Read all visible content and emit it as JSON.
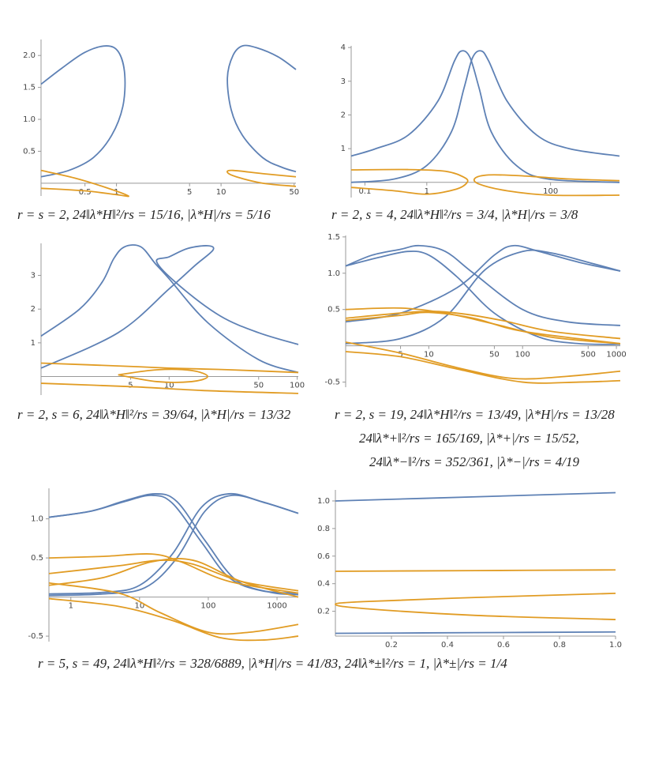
{
  "chart_data": [
    {
      "type": "line",
      "xlog": true,
      "xlim": [
        0.19,
        52
      ],
      "ylim": [
        -0.2,
        2.25
      ],
      "xticks": [
        0.5,
        1,
        5,
        10,
        50
      ],
      "yticks": [
        0.5,
        {
          "value": 1,
          "label": "1.0"
        },
        1.5,
        {
          "value": 2,
          "label": "2.0"
        }
      ],
      "caption": "r = s = 2, 24‖λ*H‖²/rs = 15/16, |λ*H|/rs = 5/16",
      "series": [
        {
          "color": "#5e81b5",
          "x": [
            0.19,
            0.3,
            0.5,
            0.8,
            1.05,
            1.2,
            1.15,
            0.9,
            0.6,
            0.35,
            0.19
          ],
          "values": [
            1.55,
            1.8,
            2.05,
            2.15,
            2.05,
            1.7,
            1.2,
            0.75,
            0.4,
            0.2,
            0.1
          ]
        },
        {
          "color": "#5e81b5",
          "x": [
            52,
            35,
            22,
            16,
            13,
            11.5,
            12.5,
            16,
            25,
            38,
            52
          ],
          "values": [
            1.78,
            1.98,
            2.12,
            2.15,
            2.0,
            1.65,
            1.15,
            0.75,
            0.4,
            0.25,
            0.18
          ]
        },
        {
          "color": "#e19c24",
          "x": [
            0.19,
            0.4,
            0.8,
            1.3,
            1.0,
            0.5,
            0.19
          ],
          "values": [
            0.2,
            0.08,
            -0.07,
            -0.2,
            -0.18,
            -0.12,
            -0.08
          ]
        },
        {
          "color": "#e19c24",
          "x": [
            52,
            25,
            13,
            11.5,
            14,
            25,
            52
          ],
          "values": [
            0.1,
            0.15,
            0.2,
            0.17,
            0.1,
            0.0,
            -0.05
          ]
        }
      ]
    },
    {
      "type": "line",
      "xlog": true,
      "xlim": [
        0.06,
        1300
      ],
      "ylim": [
        -0.45,
        4.05
      ],
      "xticks": [
        0.1,
        1,
        100
      ],
      "yticks": [
        1,
        2,
        3,
        4
      ],
      "caption": "r = 2, s = 4, 24‖λ*H‖²/rs = 3/4, |λ*H|/rs = 3/8",
      "series": [
        {
          "color": "#5e81b5",
          "x": [
            0.06,
            0.15,
            0.5,
            1.5,
            2.8,
            3.7,
            5,
            7,
            11,
            28,
            90,
            1300
          ],
          "values": [
            0.78,
            1.0,
            1.4,
            2.4,
            3.6,
            3.9,
            3.7,
            2.8,
            1.5,
            0.5,
            0.1,
            0.0
          ]
        },
        {
          "color": "#5e81b5",
          "x": [
            0.06,
            0.3,
            1,
            2.5,
            4,
            5.5,
            7.5,
            10,
            20,
            60,
            200,
            1300
          ],
          "values": [
            0.0,
            0.1,
            0.5,
            1.5,
            2.8,
            3.7,
            3.9,
            3.6,
            2.4,
            1.4,
            1.0,
            0.78
          ]
        },
        {
          "color": "#e19c24",
          "x": [
            0.06,
            0.5,
            2,
            4,
            4.5,
            3,
            1,
            0.3,
            0.06
          ],
          "values": [
            0.37,
            0.38,
            0.33,
            0.15,
            0.0,
            -0.2,
            -0.35,
            -0.25,
            -0.15
          ]
        },
        {
          "color": "#e19c24",
          "x": [
            1300,
            200,
            30,
            10,
            6,
            7,
            20,
            100,
            1300
          ],
          "values": [
            0.05,
            0.1,
            0.2,
            0.22,
            0.12,
            -0.05,
            -0.25,
            -0.38,
            -0.38
          ]
        }
      ]
    },
    {
      "type": "line",
      "xlog": true,
      "xlim": [
        1,
        102
      ],
      "ylim": [
        -0.55,
        3.95
      ],
      "xticks": [
        5,
        10,
        50,
        100
      ],
      "yticks": [
        1,
        2,
        3
      ],
      "caption": "r = 2, s = 6, 24‖λ*H‖²/rs = 39/64, |λ*H|/rs = 13/32",
      "series": [
        {
          "color": "#5e81b5",
          "x": [
            1,
            4,
            10,
            16,
            22,
            20,
            14,
            10,
            8,
            12,
            25,
            50,
            102
          ],
          "values": [
            0.25,
            1.3,
            2.6,
            3.3,
            3.75,
            3.88,
            3.8,
            3.55,
            3.4,
            2.7,
            1.8,
            1.3,
            0.95
          ]
        },
        {
          "color": "#5e81b5",
          "x": [
            1,
            2,
            3,
            3.7,
            4.5,
            6,
            7.8,
            10,
            20,
            50,
            102
          ],
          "values": [
            1.2,
            2.0,
            2.8,
            3.5,
            3.85,
            3.85,
            3.35,
            2.9,
            1.6,
            0.5,
            0.12
          ]
        },
        {
          "color": "#e19c24",
          "x": [
            1,
            5,
            10,
            30,
            102
          ],
          "values": [
            0.4,
            0.3,
            0.25,
            0.2,
            0.12
          ]
        },
        {
          "color": "#e19c24",
          "x": [
            4,
            8,
            15,
            20,
            15,
            8,
            4
          ],
          "values": [
            0.05,
            0.2,
            0.18,
            0.0,
            -0.15,
            -0.15,
            0.05
          ]
        },
        {
          "color": "#e19c24",
          "x": [
            1,
            5,
            20,
            102
          ],
          "values": [
            -0.2,
            -0.3,
            -0.42,
            -0.5
          ]
        }
      ]
    },
    {
      "type": "line",
      "xlog": true,
      "xlim": [
        1.3,
        1100
      ],
      "ylim": [
        -0.57,
        1.52
      ],
      "xticks": [
        5,
        10,
        50,
        100,
        500,
        1000
      ],
      "yticks": [
        -0.5,
        0.5,
        {
          "value": 1,
          "label": "1.0"
        },
        1.5
      ],
      "caption": [
        "r = 2, s = 19, 24‖λ*H‖²/rs = 13/49, |λ*H|/rs = 13/28",
        "24‖λ*+‖²/rs = 165/169, |λ*+|/rs = 15/52,",
        "24‖λ*−‖²/rs = 352/361, |λ*−|/rs = 4/19"
      ],
      "series": [
        {
          "color": "#5e81b5",
          "x": [
            1.3,
            2.5,
            5,
            8,
            15,
            30,
            100,
            300,
            1100
          ],
          "values": [
            1.1,
            1.25,
            1.33,
            1.38,
            1.3,
            1.0,
            0.5,
            0.33,
            0.28
          ]
        },
        {
          "color": "#5e81b5",
          "x": [
            1.3,
            3,
            6,
            10,
            20,
            50,
            150,
            400,
            1100
          ],
          "values": [
            1.1,
            1.22,
            1.3,
            1.25,
            0.95,
            0.45,
            0.12,
            0.03,
            0.02
          ]
        },
        {
          "color": "#5e81b5",
          "x": [
            1.3,
            5,
            20,
            50,
            80,
            150,
            400,
            1100
          ],
          "values": [
            0.33,
            0.45,
            0.8,
            1.25,
            1.38,
            1.3,
            1.15,
            1.03
          ]
        },
        {
          "color": "#5e81b5",
          "x": [
            1.3,
            5,
            15,
            40,
            100,
            200,
            500,
            1100
          ],
          "values": [
            0.03,
            0.1,
            0.4,
            1.05,
            1.3,
            1.28,
            1.15,
            1.03
          ]
        },
        {
          "color": "#e19c24",
          "x": [
            1.3,
            5,
            15,
            50,
            200,
            1100
          ],
          "values": [
            0.5,
            0.52,
            0.45,
            0.3,
            0.12,
            0.03
          ]
        },
        {
          "color": "#e19c24",
          "x": [
            1.3,
            8,
            20,
            60,
            200,
            1100
          ],
          "values": [
            0.38,
            0.47,
            0.45,
            0.35,
            0.2,
            0.1
          ]
        },
        {
          "color": "#e19c24",
          "x": [
            1.3,
            5,
            10,
            30,
            100,
            1100
          ],
          "values": [
            0.35,
            0.42,
            0.46,
            0.38,
            0.2,
            0.03
          ]
        },
        {
          "color": "#e19c24",
          "x": [
            1.3,
            5,
            20,
            80,
            300,
            1100
          ],
          "values": [
            0.05,
            -0.1,
            -0.3,
            -0.45,
            -0.42,
            -0.35
          ]
        },
        {
          "color": "#e19c24",
          "x": [
            1.3,
            5,
            20,
            100,
            400,
            1100
          ],
          "values": [
            -0.08,
            -0.15,
            -0.32,
            -0.5,
            -0.5,
            -0.48
          ]
        }
      ]
    },
    {
      "type": "line",
      "xlog": true,
      "xlim": [
        0.48,
        2040
      ],
      "ylim": [
        -0.57,
        1.39
      ],
      "xticks": [
        1,
        10,
        100,
        1000
      ],
      "yticks": [
        -0.5,
        0.5,
        {
          "value": 1,
          "label": "1.0"
        }
      ],
      "caption": "r = 5, s = 49, 24‖λ*H‖²/rs = 328/6889, |λ*H|/rs = 41/83, 24‖λ*±‖²/rs = 1, |λ*±|/rs = 1/4",
      "series": [
        {
          "color": "#5e81b5",
          "x": [
            0.48,
            2,
            6,
            15,
            30,
            80,
            200,
            600,
            2040
          ],
          "values": [
            1.02,
            1.1,
            1.22,
            1.3,
            1.2,
            0.7,
            0.25,
            0.08,
            0.05
          ]
        },
        {
          "color": "#5e81b5",
          "x": [
            0.48,
            2,
            6,
            17,
            35,
            90,
            250,
            800,
            2040
          ],
          "values": [
            1.02,
            1.1,
            1.23,
            1.32,
            1.22,
            0.72,
            0.22,
            0.06,
            0.03
          ]
        },
        {
          "color": "#5e81b5",
          "x": [
            0.48,
            3,
            10,
            30,
            80,
            200,
            600,
            2040
          ],
          "values": [
            0.04,
            0.06,
            0.15,
            0.55,
            1.15,
            1.32,
            1.22,
            1.07
          ]
        },
        {
          "color": "#5e81b5",
          "x": [
            0.48,
            3,
            12,
            35,
            90,
            220,
            700,
            2040
          ],
          "values": [
            0.02,
            0.04,
            0.12,
            0.5,
            1.1,
            1.3,
            1.2,
            1.07
          ]
        },
        {
          "color": "#e19c24",
          "x": [
            0.48,
            3,
            15,
            40,
            200,
            2040
          ],
          "values": [
            0.5,
            0.52,
            0.55,
            0.45,
            0.2,
            0.05
          ]
        },
        {
          "color": "#e19c24",
          "x": [
            0.48,
            5,
            20,
            60,
            300,
            2040
          ],
          "values": [
            0.3,
            0.4,
            0.47,
            0.42,
            0.2,
            0.08
          ]
        },
        {
          "color": "#e19c24",
          "x": [
            0.48,
            3,
            15,
            60,
            300,
            2040
          ],
          "values": [
            0.15,
            0.25,
            0.45,
            0.47,
            0.2,
            0.0
          ]
        },
        {
          "color": "#e19c24",
          "x": [
            0.48,
            5,
            20,
            100,
            400,
            2040
          ],
          "values": [
            0.18,
            0.05,
            -0.2,
            -0.45,
            -0.45,
            -0.35
          ]
        },
        {
          "color": "#e19c24",
          "x": [
            0.48,
            5,
            30,
            150,
            600,
            2040
          ],
          "values": [
            -0.02,
            -0.12,
            -0.3,
            -0.52,
            -0.55,
            -0.5
          ]
        }
      ]
    },
    {
      "type": "line",
      "xlog": false,
      "xlim": [
        0,
        1
      ],
      "ylim": [
        0.02,
        1.08
      ],
      "xticks": [
        0.2,
        0.4,
        0.6,
        0.8,
        {
          "value": 1,
          "label": "1.0"
        }
      ],
      "yticks": [
        0.2,
        0.4,
        0.6,
        0.8,
        {
          "value": 1,
          "label": "1.0"
        }
      ],
      "series": [
        {
          "color": "#5e81b5",
          "x": [
            0,
            0.5,
            1
          ],
          "values": [
            1.0,
            1.03,
            1.06
          ]
        },
        {
          "color": "#e19c24",
          "x": [
            0,
            0.5,
            1
          ],
          "values": [
            0.49,
            0.495,
            0.5
          ]
        },
        {
          "color": "#e19c24",
          "x": [
            1,
            0.5,
            0.1,
            0,
            0.1,
            0.5,
            1
          ],
          "values": [
            0.33,
            0.3,
            0.27,
            0.25,
            0.22,
            0.17,
            0.14
          ]
        },
        {
          "color": "#5e81b5",
          "x": [
            0,
            0.5,
            1
          ],
          "values": [
            0.04,
            0.045,
            0.05
          ]
        }
      ]
    }
  ]
}
